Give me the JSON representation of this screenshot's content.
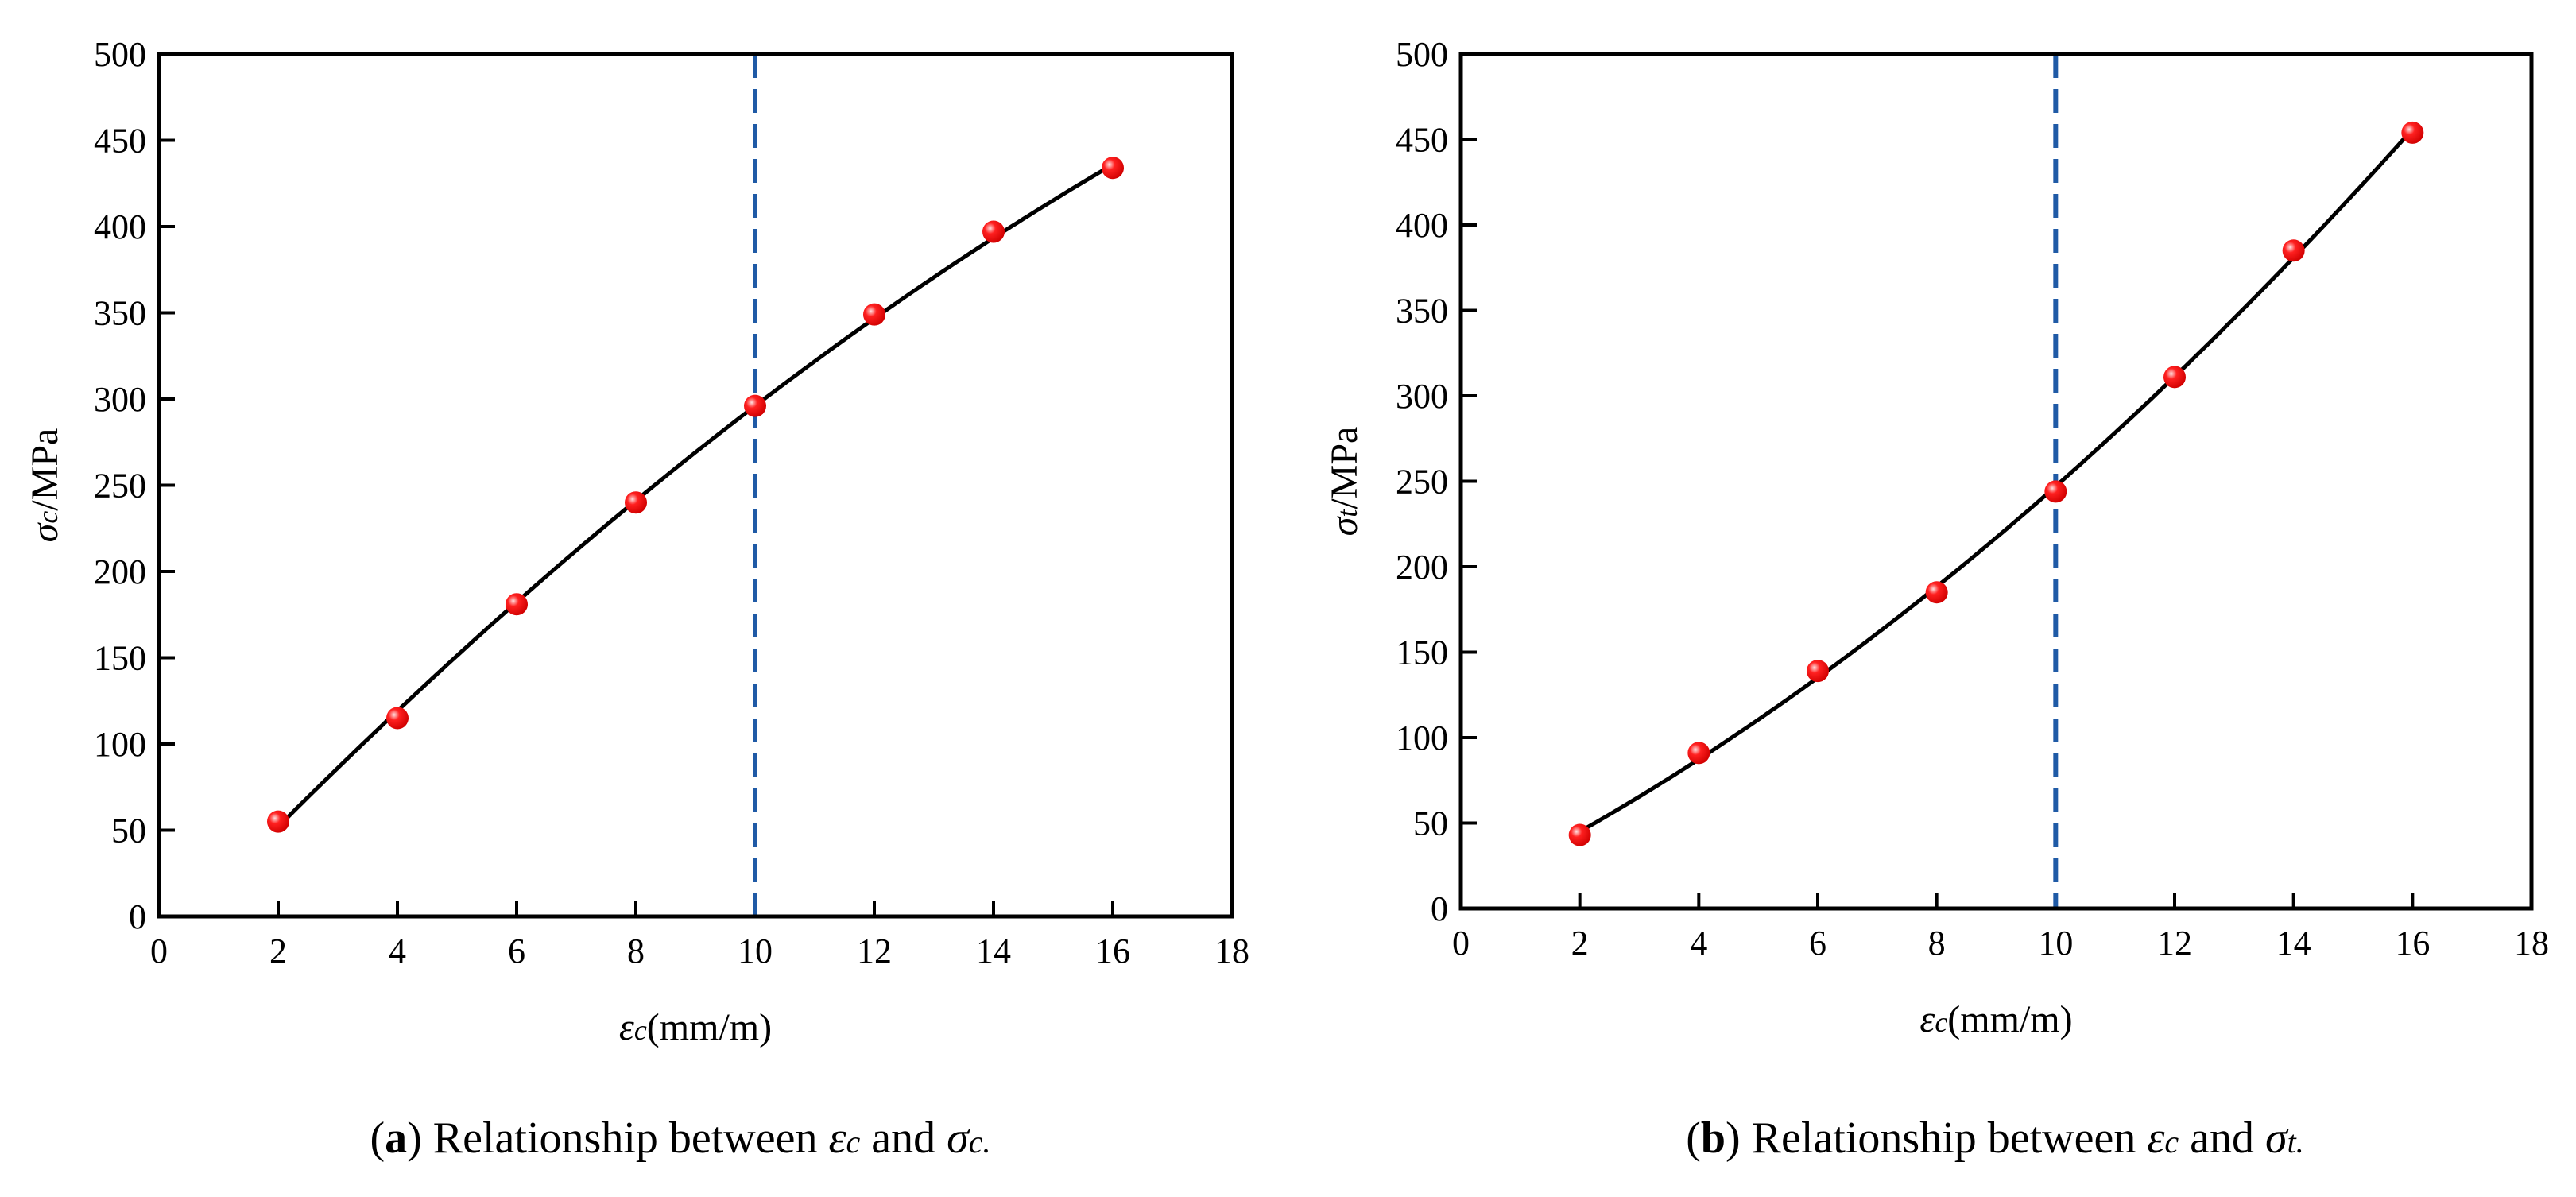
{
  "colors": {
    "marker": "#ff0000",
    "fit_line": "#000000",
    "reference_line": "#1f5aa6",
    "frame": "#000000"
  },
  "chart_data": [
    {
      "type": "scatter",
      "panel_label": "a",
      "caption_text": "Relationship between",
      "caption_var1": "ε",
      "caption_sub1": "c",
      "caption_and": "and",
      "caption_var2": "σ",
      "caption_sub2": "c.",
      "xlabel": {
        "symbol": "ε",
        "sub": "c",
        "unit": "(mm/m)"
      },
      "ylabel": {
        "symbol": "σ",
        "sub": "c",
        "unit": "/MPa"
      },
      "xlim": [
        0,
        18
      ],
      "ylim": [
        0,
        500
      ],
      "xticks": [
        "0",
        "2",
        "4",
        "6",
        "8",
        "10",
        "12",
        "14",
        "16",
        "18"
      ],
      "yticks": [
        "0",
        "50",
        "100",
        "150",
        "200",
        "250",
        "300",
        "350",
        "400",
        "450",
        "500"
      ],
      "x": [
        2,
        4,
        6,
        8,
        10,
        12,
        14,
        16
      ],
      "y": [
        55,
        115,
        181,
        240,
        296,
        349,
        397,
        434
      ],
      "fit": "smooth curve through points",
      "reference_line_x": 10,
      "grid": false,
      "legend": "none"
    },
    {
      "type": "scatter",
      "panel_label": "b",
      "caption_text": "Relationship between",
      "caption_var1": "ε",
      "caption_sub1": "c",
      "caption_and": "and",
      "caption_var2": "σ",
      "caption_sub2": "t.",
      "xlabel": {
        "symbol": "ε",
        "sub": "c",
        "unit": "(mm/m)"
      },
      "ylabel": {
        "symbol": "σ",
        "sub": "t",
        "unit": "/MPa"
      },
      "xlim": [
        0,
        18
      ],
      "ylim": [
        0,
        500
      ],
      "xticks": [
        "0",
        "2",
        "4",
        "6",
        "8",
        "10",
        "12",
        "14",
        "16",
        "18"
      ],
      "yticks": [
        "0",
        "50",
        "100",
        "150",
        "200",
        "250",
        "300",
        "350",
        "400",
        "450",
        "500"
      ],
      "x": [
        2,
        4,
        6,
        8,
        10,
        12,
        14,
        16
      ],
      "y": [
        43,
        91,
        139,
        185,
        244,
        311,
        385,
        454
      ],
      "fit": "smooth curve through points",
      "reference_line_x": 10,
      "grid": false,
      "legend": "none"
    }
  ]
}
